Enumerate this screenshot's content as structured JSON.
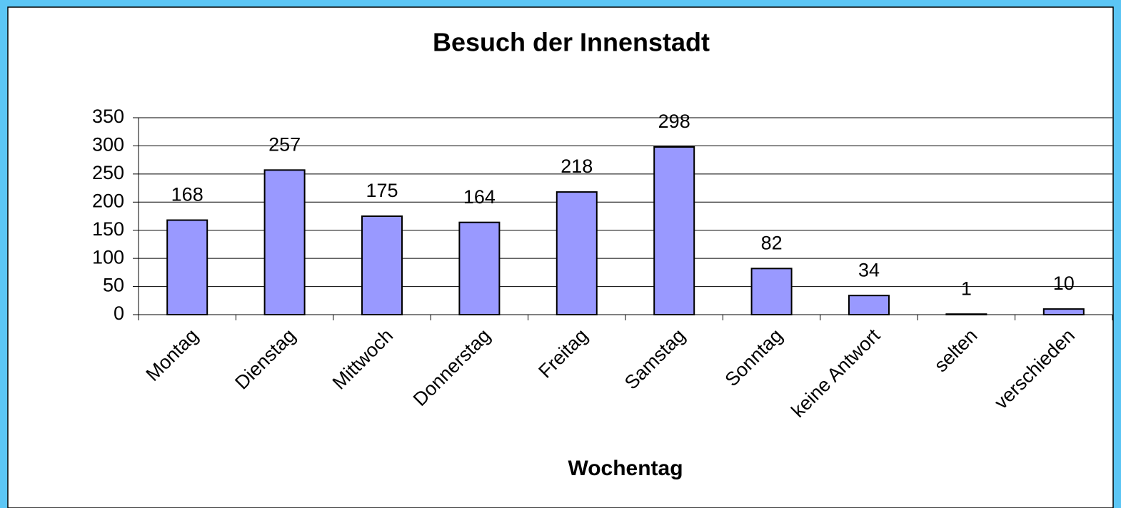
{
  "chart_data": {
    "type": "bar",
    "title": "Besuch der Innenstadt",
    "x_label": "Wochentag",
    "categories": [
      "Montag",
      "Dienstag",
      "Mittwoch",
      "Donnerstag",
      "Freitag",
      "Samstag",
      "Sonntag",
      "keine Antwort",
      "selten",
      "verschieden"
    ],
    "values": [
      168,
      257,
      175,
      164,
      218,
      298,
      82,
      34,
      1,
      10
    ],
    "color": "#9999ff",
    "ylim": [
      0,
      350
    ],
    "yticks": [
      0,
      50,
      100,
      150,
      200,
      250,
      300,
      350
    ],
    "grid": true
  }
}
